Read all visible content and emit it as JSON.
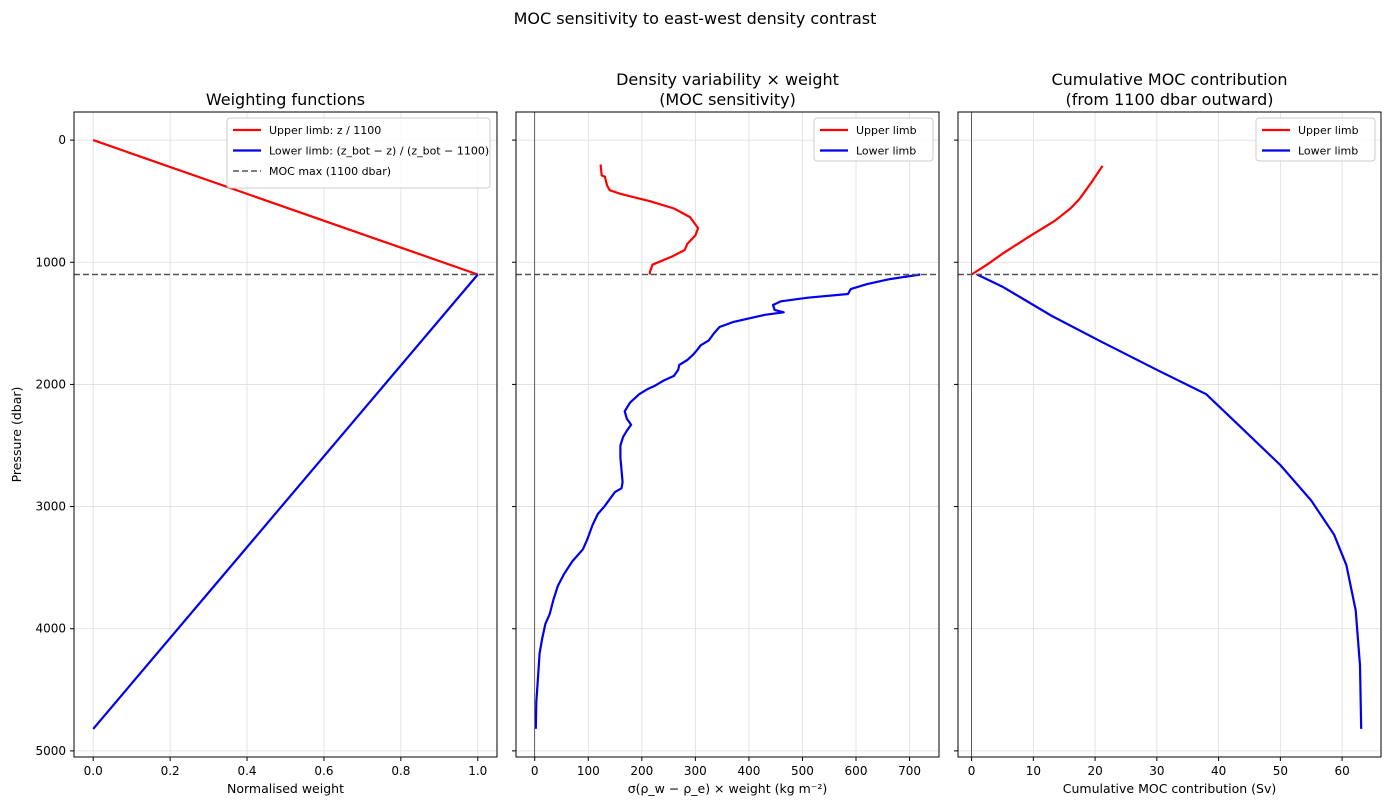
{
  "figure": {
    "suptitle": "MOC sensitivity to east-west density contrast",
    "shared_y": {
      "label": "Pressure (dbar)",
      "ticks": [
        0,
        1000,
        2000,
        3000,
        4000,
        5000
      ],
      "range": [
        5050,
        -230
      ],
      "inverted": true
    },
    "reference_line": {
      "y": 1100,
      "style": "dashed",
      "color": "#555555"
    }
  },
  "colors": {
    "upper": "#ff0000",
    "lower": "#0000ee",
    "moc": "#555555",
    "grid": "#dddddd"
  },
  "chart_data": [
    {
      "type": "line",
      "title": [
        "Weighting functions"
      ],
      "xlabel": "Normalised weight",
      "ylabel": "Pressure (dbar)",
      "xlim": [
        -0.05,
        1.05
      ],
      "xticks": [
        0.0,
        0.2,
        0.4,
        0.6,
        0.8,
        1.0
      ],
      "xtick_labels": [
        "0.0",
        "0.2",
        "0.4",
        "0.6",
        "0.8",
        "1.0"
      ],
      "ylim": [
        5050,
        -230
      ],
      "grid": true,
      "zero_line": false,
      "legend": {
        "placement": "top-right",
        "entries": [
          "Upper limb: z / 1100",
          "Lower limb: (z_bot − z) / (z_bot − 1100)",
          "MOC max (1100 dbar)"
        ]
      },
      "series": [
        {
          "name": "Upper limb",
          "color": "#ff0000",
          "points": [
            [
              0.0,
              0
            ],
            [
              1.0,
              1100
            ]
          ]
        },
        {
          "name": "Lower limb",
          "color": "#0000ee",
          "points": [
            [
              1.0,
              1100
            ],
            [
              0.0,
              4820
            ]
          ]
        }
      ]
    },
    {
      "type": "line",
      "title": [
        "Density variability × weight",
        "(MOC sensitivity)"
      ],
      "xlabel": "σ(ρ_w − ρ_e) × weight (kg m⁻²)",
      "xlim": [
        -35,
        755
      ],
      "xticks": [
        0,
        100,
        200,
        300,
        400,
        500,
        600,
        700
      ],
      "xtick_labels": [
        "0",
        "100",
        "200",
        "300",
        "400",
        "500",
        "600",
        "700"
      ],
      "ylim": [
        5050,
        -230
      ],
      "grid": true,
      "zero_line": true,
      "legend": {
        "placement": "top-right",
        "entries": [
          "Upper limb",
          "Lower limb"
        ]
      },
      "series": [
        {
          "name": "Upper limb",
          "color": "#ff0000",
          "points": [
            [
              123,
              200
            ],
            [
              125,
              290
            ],
            [
              131,
              300
            ],
            [
              135,
              370
            ],
            [
              140,
              410
            ],
            [
              160,
              440
            ],
            [
              215,
              500
            ],
            [
              260,
              560
            ],
            [
              290,
              630
            ],
            [
              305,
              720
            ],
            [
              300,
              780
            ],
            [
              285,
              850
            ],
            [
              280,
              900
            ],
            [
              258,
              950
            ],
            [
              220,
              1020
            ],
            [
              215,
              1080
            ],
            [
              215,
              1100
            ]
          ]
        },
        {
          "name": "Lower limb",
          "color": "#0000ee",
          "points": [
            [
              720,
              1100
            ],
            [
              660,
              1140
            ],
            [
              620,
              1180
            ],
            [
              590,
              1220
            ],
            [
              585,
              1260
            ],
            [
              510,
              1290
            ],
            [
              460,
              1320
            ],
            [
              445,
              1350
            ],
            [
              448,
              1390
            ],
            [
              465,
              1410
            ],
            [
              430,
              1430
            ],
            [
              400,
              1460
            ],
            [
              370,
              1490
            ],
            [
              345,
              1530
            ],
            [
              335,
              1580
            ],
            [
              325,
              1640
            ],
            [
              310,
              1680
            ],
            [
              303,
              1720
            ],
            [
              295,
              1760
            ],
            [
              285,
              1800
            ],
            [
              270,
              1840
            ],
            [
              268,
              1880
            ],
            [
              260,
              1930
            ],
            [
              240,
              1970
            ],
            [
              225,
              2010
            ],
            [
              210,
              2040
            ],
            [
              195,
              2080
            ],
            [
              178,
              2150
            ],
            [
              168,
              2220
            ],
            [
              172,
              2280
            ],
            [
              180,
              2330
            ],
            [
              172,
              2380
            ],
            [
              165,
              2430
            ],
            [
              160,
              2500
            ],
            [
              160,
              2600
            ],
            [
              162,
              2700
            ],
            [
              164,
              2800
            ],
            [
              162,
              2850
            ],
            [
              150,
              2880
            ],
            [
              140,
              2940
            ],
            [
              130,
              3000
            ],
            [
              118,
              3060
            ],
            [
              108,
              3150
            ],
            [
              98,
              3270
            ],
            [
              90,
              3350
            ],
            [
              70,
              3450
            ],
            [
              55,
              3550
            ],
            [
              43,
              3650
            ],
            [
              35,
              3760
            ],
            [
              28,
              3880
            ],
            [
              20,
              3960
            ],
            [
              14,
              4080
            ],
            [
              9,
              4200
            ],
            [
              6,
              4400
            ],
            [
              3,
              4600
            ],
            [
              2,
              4820
            ]
          ]
        }
      ]
    },
    {
      "type": "line",
      "title": [
        "Cumulative MOC contribution",
        "(from 1100 dbar outward)"
      ],
      "xlabel": "Cumulative MOC contribution (Sv)",
      "xlim": [
        -2.2,
        66.3
      ],
      "xticks": [
        0,
        10,
        20,
        30,
        40,
        50,
        60
      ],
      "xtick_labels": [
        "0",
        "10",
        "20",
        "30",
        "40",
        "50",
        "60"
      ],
      "ylim": [
        5050,
        -230
      ],
      "grid": true,
      "zero_line": true,
      "legend": {
        "placement": "top-right",
        "entries": [
          "Upper limb",
          "Lower limb"
        ]
      },
      "series": [
        {
          "name": "Upper limb",
          "color": "#ff0000",
          "points": [
            [
              21.2,
              210
            ],
            [
              19.5,
              340
            ],
            [
              17.5,
              480
            ],
            [
              16,
              560
            ],
            [
              13.5,
              660
            ],
            [
              9,
              800
            ],
            [
              5,
              930
            ],
            [
              2.5,
              1020
            ],
            [
              0,
              1100
            ]
          ]
        },
        {
          "name": "Lower limb",
          "color": "#0000ee",
          "points": [
            [
              0.9,
              1100
            ],
            [
              5,
              1200
            ],
            [
              13,
              1440
            ],
            [
              21,
              1650
            ],
            [
              30,
              1880
            ],
            [
              38,
              2080
            ],
            [
              44,
              2370
            ],
            [
              50,
              2660
            ],
            [
              55,
              2950
            ],
            [
              58.7,
              3230
            ],
            [
              60.7,
              3480
            ],
            [
              62.2,
              3850
            ],
            [
              62.9,
              4300
            ],
            [
              63.1,
              4820
            ]
          ]
        }
      ]
    }
  ]
}
